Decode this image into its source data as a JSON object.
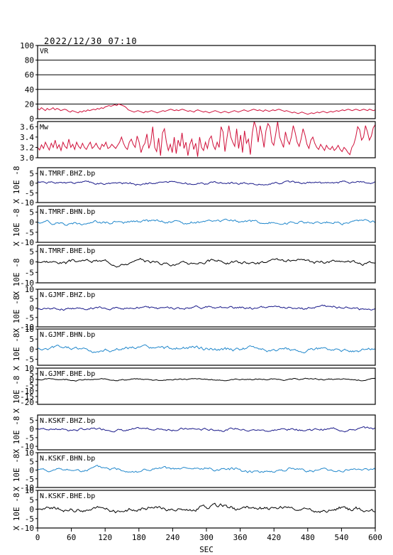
{
  "header": {
    "timestamp": "2022/12/30 07:10"
  },
  "chart_data": {
    "type": "line",
    "x_label": "SEC",
    "x_ticks": [
      0,
      60,
      120,
      180,
      240,
      300,
      360,
      420,
      480,
      540,
      600
    ],
    "xlim": [
      0,
      600
    ],
    "unit_label": "X 10E -8",
    "panels": [
      {
        "name": "VR",
        "ylim": [
          0,
          100
        ],
        "yticks": [
          "0",
          "20",
          "40",
          "60",
          "80",
          "100"
        ],
        "grid": true,
        "color": "#d0103a",
        "y": [
          14,
          12,
          15,
          13,
          11,
          14,
          12,
          13,
          15,
          12,
          14,
          13,
          11,
          12,
          13,
          12,
          10,
          9,
          11,
          10,
          9,
          8,
          10,
          9,
          11,
          10,
          12,
          11,
          12,
          13,
          12,
          14,
          13,
          15,
          14,
          16,
          17,
          18,
          17,
          18,
          19,
          18,
          20,
          19,
          18,
          17,
          15,
          12,
          11,
          10,
          9,
          10,
          11,
          10,
          9,
          8,
          10,
          9,
          10,
          11,
          10,
          9,
          8,
          9,
          10,
          11,
          10,
          11,
          12,
          13,
          12,
          11,
          12,
          11,
          12,
          13,
          12,
          11,
          10,
          11,
          10,
          9,
          11,
          12,
          11,
          10,
          9,
          10,
          9,
          8,
          9,
          10,
          11,
          10,
          9,
          8,
          9,
          10,
          9,
          8,
          9,
          10,
          11,
          10,
          9,
          10,
          11,
          12,
          11,
          10,
          11,
          12,
          13,
          12,
          11,
          12,
          11,
          10,
          12,
          11,
          10,
          11,
          12,
          11,
          12,
          13,
          12,
          11,
          10,
          11,
          10,
          9,
          8,
          9,
          8,
          7,
          8,
          9,
          8,
          7,
          6,
          7,
          8,
          7,
          8,
          9,
          8,
          9,
          10,
          9,
          8,
          9,
          10,
          9,
          10,
          11,
          10,
          11,
          12,
          11,
          12,
          13,
          12,
          11,
          12,
          13,
          12,
          11,
          12,
          13,
          12,
          11,
          13,
          12,
          11,
          12
        ]
      },
      {
        "name": "Mw",
        "ylim": [
          3.0,
          3.7
        ],
        "yticks": [
          "3.0",
          "3.2",
          "3.4",
          "3.6"
        ],
        "grid": false,
        "color": "#d0103a",
        "y": [
          3.2,
          3.15,
          3.25,
          3.18,
          3.3,
          3.22,
          3.15,
          3.28,
          3.2,
          3.34,
          3.18,
          3.25,
          3.14,
          3.3,
          3.22,
          3.18,
          3.36,
          3.2,
          3.26,
          3.16,
          3.3,
          3.22,
          3.18,
          3.28,
          3.2,
          3.16,
          3.24,
          3.3,
          3.18,
          3.22,
          3.28,
          3.2,
          3.16,
          3.26,
          3.22,
          3.3,
          3.18,
          3.2,
          3.26,
          3.22,
          3.18,
          3.24,
          3.3,
          3.4,
          3.28,
          3.2,
          3.16,
          3.3,
          3.36,
          3.26,
          3.2,
          3.42,
          3.3,
          3.1,
          3.22,
          3.28,
          3.46,
          3.18,
          3.3,
          3.6,
          3.2,
          3.12,
          3.38,
          3.04,
          3.48,
          3.56,
          3.3,
          3.14,
          3.26,
          3.1,
          3.4,
          3.08,
          3.34,
          3.22,
          3.48,
          3.18,
          3.3,
          3.04,
          3.26,
          3.36,
          3.16,
          3.28,
          3.02,
          3.4,
          3.2,
          3.14,
          3.3,
          3.18,
          3.36,
          3.42,
          3.24,
          3.16,
          3.3,
          3.2,
          3.6,
          3.5,
          3.12,
          3.38,
          3.62,
          3.4,
          3.3,
          3.22,
          3.56,
          3.18,
          3.44,
          3.1,
          3.52,
          3.28,
          3.36,
          3.06,
          3.48,
          3.7,
          3.58,
          3.3,
          3.62,
          3.44,
          3.2,
          3.52,
          3.66,
          3.6,
          3.3,
          3.24,
          3.46,
          3.7,
          3.4,
          3.3,
          3.2,
          3.5,
          3.34,
          3.26,
          3.4,
          3.62,
          3.48,
          3.3,
          3.22,
          3.36,
          3.56,
          3.44,
          3.26,
          3.18,
          3.34,
          3.4,
          3.28,
          3.2,
          3.16,
          3.26,
          3.2,
          3.14,
          3.24,
          3.18,
          3.16,
          3.22,
          3.14,
          3.18,
          3.24,
          3.16,
          3.12,
          3.2,
          3.16,
          3.1,
          3.06,
          3.2,
          3.26,
          3.4,
          3.6,
          3.54,
          3.34,
          3.4,
          3.62,
          3.5,
          3.34,
          3.42,
          3.58,
          3.64
        ]
      },
      {
        "name": "N.TMRF.BHZ.bp",
        "ylim": [
          -10,
          8
        ],
        "yticks": [
          "-10",
          "-5",
          "0",
          "5"
        ],
        "grid": false,
        "color": "#1a1a8a",
        "amp": 0.7,
        "seed": 1
      },
      {
        "name": "N.TMRF.BHN.bp",
        "ylim": [
          -10,
          8
        ],
        "yticks": [
          "-10",
          "-5",
          "0",
          "5"
        ],
        "grid": false,
        "color": "#2288cc",
        "amp": 0.9,
        "seed": 2
      },
      {
        "name": "N.TMRF.BHE.bp",
        "ylim": [
          -10,
          8
        ],
        "yticks": [
          "-10",
          "-5",
          "0",
          "5"
        ],
        "grid": false,
        "color": "#000000",
        "amp": 0.9,
        "seed": 3
      },
      {
        "name": "N.GJMF.BHZ.bp",
        "ylim": [
          -10,
          10
        ],
        "yticks": [
          "-10",
          "-5",
          "0",
          "5",
          "10"
        ],
        "grid": false,
        "color": "#1a1a8a",
        "amp": 0.8,
        "seed": 4
      },
      {
        "name": "N.GJMF.BHN.bp",
        "ylim": [
          -8,
          10
        ],
        "yticks": [
          "-5",
          "0",
          "5",
          "10"
        ],
        "grid": false,
        "color": "#2288cc",
        "amp": 1.0,
        "seed": 5
      },
      {
        "name": "N.GJMF.BHE.bp",
        "ylim": [
          -22,
          10
        ],
        "yticks": [
          "-20",
          "-15",
          "-10",
          "-5",
          "0",
          "5",
          "10"
        ],
        "grid": false,
        "color": "#000000",
        "amp": 0.7,
        "seed": 6
      },
      {
        "name": "N.KSKF.BHZ.bp",
        "ylim": [
          -12,
          8
        ],
        "yticks": [
          "-10",
          "-5",
          "0",
          "5"
        ],
        "grid": false,
        "color": "#1a1a8a",
        "amp": 0.8,
        "seed": 7
      },
      {
        "name": "N.KSKF.BHN.bp",
        "ylim": [
          -10,
          10
        ],
        "yticks": [
          "-10",
          "-5",
          "0",
          "5",
          "10"
        ],
        "grid": false,
        "color": "#2288cc",
        "amp": 1.0,
        "seed": 8
      },
      {
        "name": "N.KSKF.BHE.bp",
        "ylim": [
          -10,
          10
        ],
        "yticks": [
          "-10",
          "-5",
          "0",
          "5",
          "10"
        ],
        "grid": false,
        "color": "#000000",
        "amp": 1.3,
        "seed": 9
      }
    ]
  }
}
